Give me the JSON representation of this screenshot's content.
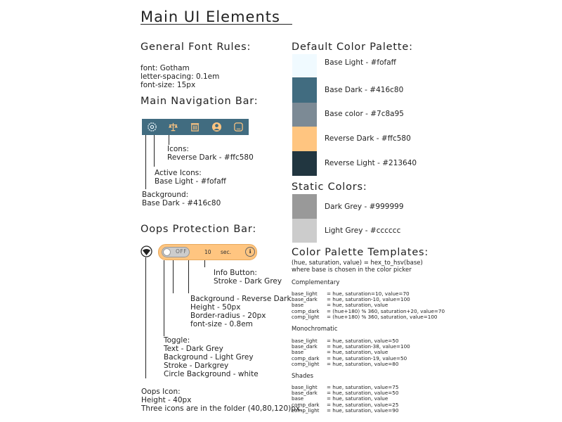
{
  "title": "Main UI Elements",
  "font_rules": {
    "heading": "General Font Rules:",
    "lines": [
      "font: Gotham",
      "letter-spacing: 0.1em",
      "font-size: 15px"
    ]
  },
  "nav": {
    "heading": "Main Navigation Bar:",
    "icons": [
      "gear-icon",
      "scale-icon",
      "trash-icon",
      "user-icon",
      "chat-icon"
    ],
    "labels": {
      "icons": [
        "Icons:",
        "Reverse Dark - #ffc580"
      ],
      "active": [
        "Active Icons:",
        "Base Light - #fofaff"
      ],
      "background": [
        "Background:",
        "Base Dark - #416c80"
      ]
    },
    "colors": {
      "bar": "#416c80",
      "icon": "#ffc580",
      "active": "#f0faff"
    }
  },
  "oops": {
    "heading": "Oops Protection Bar:",
    "toggle_text": "OFF",
    "seconds": "10",
    "unit": "sec.",
    "info_glyph": "ℹ",
    "labels": {
      "info": [
        "Info Button:",
        "Stroke - Dark Grey"
      ],
      "background": [
        "Background - Reverse Dark",
        "Height - 50px",
        "Border-radius - 20px",
        "font-size - 0.8em"
      ],
      "toggle": [
        "Toggle:",
        "Text - Dark Grey",
        "Background - Light Grey",
        "Stroke - Darkgrey",
        "Circle Background - white"
      ],
      "oops_icon": [
        "Oops Icon:",
        "Height - 40px",
        "Three icons are in the folder (40,80,120)px."
      ]
    }
  },
  "palette": {
    "heading": "Default Color Palette:",
    "swatches": [
      {
        "label": "Base Light - #fofaff",
        "color": "#f0faff"
      },
      {
        "label": "Base Dark - #416c80",
        "color": "#416c80"
      },
      {
        "label": "Base color - #7c8a95",
        "color": "#7c8a95"
      },
      {
        "label": "Reverse Dark - #ffc580",
        "color": "#ffc580"
      },
      {
        "label": "Reverse Light - #213640",
        "color": "#213640"
      }
    ]
  },
  "static": {
    "heading": "Static Colors:",
    "swatches": [
      {
        "label": "Dark Grey - #999999",
        "color": "#999999"
      },
      {
        "label": "Light Grey - #cccccc",
        "color": "#cccccc"
      }
    ]
  },
  "templates": {
    "heading": "Color Palette Templates:",
    "intro": [
      "(hue, saturation, value) = hex_to_hsv(base)",
      "where base is chosen in the color picker"
    ],
    "sections": [
      {
        "name": "Complementary",
        "keys": "base_light\nbase_dark\nbase\ncomp_dark\ncomp_light",
        "vals": "= hue, saturation=10, value=70\n= hue, saturation-10, value=100\n= hue, saturation, value\n= (hue+180) % 360, saturation+20, value=70\n= (hue+180) % 360, saturation, value=100"
      },
      {
        "name": "Monochromatic",
        "keys": "base_light\nbase_dark\nbase\ncomp_dark\ncomp_light",
        "vals": "= hue, saturation, value=50\n= hue, saturation-38, value=100\n= hue, saturation, value\n= hue, saturation-19, value=50\n= hue, saturation, value=80"
      },
      {
        "name": "Shades",
        "keys": "base_light\nbase_dark\nbase\ncomp_dark\ncomp_light",
        "vals": "= hue, saturation, value=75\n= hue, saturation, value=50\n= hue, saturation, value\n= hue, saturation, value=25\n= hue, saturation, value=90"
      }
    ]
  }
}
